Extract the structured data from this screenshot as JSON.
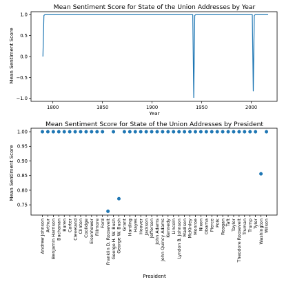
{
  "chart_data": [
    {
      "type": "line",
      "title": "Mean Sentiment Score for State of the Union Addresses by Year",
      "xlabel": "Year",
      "ylabel": "Mean Sentiment Score",
      "xlim": [
        1778,
        2026
      ],
      "ylim": [
        -1.07,
        1.07
      ],
      "xticks": [
        1800,
        1850,
        1900,
        1950,
        2000
      ],
      "yticks": [
        -1.0,
        -0.5,
        0.0,
        0.5,
        1.0
      ],
      "ytick_labels": [
        "−1.0",
        "−0.5",
        "0.0",
        "0.5",
        "1.0"
      ],
      "grid": false,
      "x": [
        1790,
        1791,
        1792,
        1940,
        1941,
        1942,
        1943,
        1944,
        1945,
        2000,
        2001,
        2002,
        2003,
        2004,
        2017
      ],
      "y": [
        0.0,
        0.98,
        1.0,
        1.0,
        1.0,
        -0.98,
        0.98,
        1.0,
        1.0,
        1.0,
        1.0,
        -0.82,
        0.98,
        1.0,
        1.0
      ]
    },
    {
      "type": "scatter",
      "title": "Mean Sentiment Score for State of the Union Addresses by President",
      "xlabel": "President",
      "ylabel": "Mean Sentiment Score",
      "ylim": [
        0.715,
        1.012
      ],
      "yticks": [
        0.75,
        0.8,
        0.85,
        0.9,
        0.95,
        1.0
      ],
      "ytick_labels": [
        "0.75",
        "0.80",
        "0.85",
        "0.90",
        "0.95",
        "1.00"
      ],
      "grid": false,
      "categories": [
        "Andrew Johnson",
        "Arthur",
        "Benjamin Harrison",
        "Buchanan",
        "Buren",
        "Carter",
        "Cleveland",
        "Clinton",
        "Coolidge",
        "Eisenhower",
        "Fillmore",
        "Ford",
        "Franklin D. Roosevelt",
        "George H. W. Bush",
        "George W. Bush",
        "Grant",
        "Harding",
        "Hayes",
        "Hoover",
        "Jackson",
        "Jefferson",
        "John Adams",
        "John Quincy Adams",
        "Kennedy",
        "Lincoln",
        "Lyndon B. Johnson",
        "Madison",
        "McKinley",
        "Monroe",
        "Nixon",
        "Obama",
        "Pierce",
        "Polk",
        "Reagan",
        "Taft",
        "Taylor",
        "Theodore Roosevelt",
        "Truman",
        "Trump",
        "Tyler",
        "Washington",
        "Wilson"
      ],
      "values": [
        1.0,
        1.0,
        1.0,
        1.0,
        1.0,
        1.0,
        1.0,
        1.0,
        1.0,
        1.0,
        1.0,
        1.0,
        0.728,
        1.0,
        0.771,
        1.0,
        1.0,
        1.0,
        1.0,
        1.0,
        1.0,
        1.0,
        1.0,
        1.0,
        1.0,
        1.0,
        1.0,
        1.0,
        1.0,
        1.0,
        1.0,
        1.0,
        1.0,
        1.0,
        1.0,
        1.0,
        1.0,
        1.0,
        1.0,
        1.0,
        0.856,
        1.0
      ]
    }
  ]
}
